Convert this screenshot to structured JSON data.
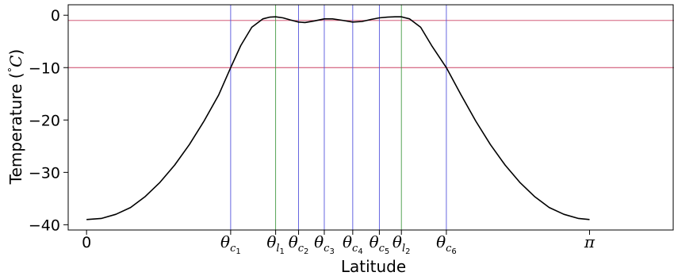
{
  "chart_data": {
    "type": "line",
    "xlabel": "Latitude",
    "ylabel": "Temperature (°C)",
    "ylabel_parts": {
      "pre": "Temperature (",
      "deg": "°",
      "unit": "C",
      "post": ")"
    },
    "xlim": [
      -0.1,
      3.2
    ],
    "ylim": [
      -41,
      2
    ],
    "yticks": [
      0,
      -10,
      -20,
      -30,
      -40
    ],
    "ytick_labels": [
      "0",
      "−10",
      "−20",
      "−30",
      "−40"
    ],
    "xticks": [
      {
        "x": 0.0,
        "base": "0",
        "sub": "",
        "subsub": "",
        "kind": "plain"
      },
      {
        "x": 0.785,
        "base": "θ",
        "sub": "c",
        "subsub": "1",
        "kind": "critical"
      },
      {
        "x": 1.03,
        "base": "θ",
        "sub": "l",
        "subsub": "1",
        "kind": "lobe"
      },
      {
        "x": 1.155,
        "base": "θ",
        "sub": "c",
        "subsub": "2",
        "kind": "critical"
      },
      {
        "x": 1.295,
        "base": "θ",
        "sub": "c",
        "subsub": "3",
        "kind": "critical"
      },
      {
        "x": 1.45,
        "base": "θ",
        "sub": "c",
        "subsub": "4",
        "kind": "critical"
      },
      {
        "x": 1.595,
        "base": "θ",
        "sub": "c",
        "subsub": "5",
        "kind": "critical"
      },
      {
        "x": 1.715,
        "base": "θ",
        "sub": "l",
        "subsub": "2",
        "kind": "lobe"
      },
      {
        "x": 1.96,
        "base": "θ",
        "sub": "c",
        "subsub": "6",
        "kind": "critical"
      },
      {
        "x": 2.74,
        "base": "π",
        "sub": "",
        "subsub": "",
        "kind": "plain"
      }
    ],
    "hlines": [
      {
        "y": -1,
        "color": "#cc4466"
      },
      {
        "y": -10,
        "color": "#cc4466"
      }
    ],
    "vline_colors": {
      "critical": "#5555dd",
      "lobe": "#449944"
    },
    "series": [
      {
        "color": "#000000",
        "x": [
          0.0,
          0.08,
          0.16,
          0.24,
          0.32,
          0.4,
          0.48,
          0.56,
          0.64,
          0.72,
          0.785,
          0.84,
          0.9,
          0.96,
          1.0,
          1.03,
          1.07,
          1.11,
          1.155,
          1.19,
          1.24,
          1.295,
          1.34,
          1.39,
          1.45,
          1.5,
          1.55,
          1.595,
          1.64,
          1.68,
          1.715,
          1.76,
          1.82,
          1.88,
          1.96,
          2.04,
          2.12,
          2.2,
          2.28,
          2.36,
          2.44,
          2.52,
          2.6,
          2.68,
          2.74
        ],
        "y": [
          -39,
          -38.8,
          -38,
          -36.7,
          -34.6,
          -31.9,
          -28.6,
          -24.7,
          -20.2,
          -15.2,
          -10,
          -5.8,
          -2.3,
          -0.7,
          -0.35,
          -0.3,
          -0.5,
          -0.9,
          -1.3,
          -1.4,
          -1.1,
          -0.7,
          -0.7,
          -0.95,
          -1.3,
          -1.2,
          -0.8,
          -0.5,
          -0.35,
          -0.3,
          -0.3,
          -0.7,
          -2.3,
          -5.8,
          -10,
          -15.2,
          -20.2,
          -24.7,
          -28.6,
          -31.9,
          -34.6,
          -36.7,
          -38,
          -38.8,
          -39
        ]
      }
    ]
  }
}
